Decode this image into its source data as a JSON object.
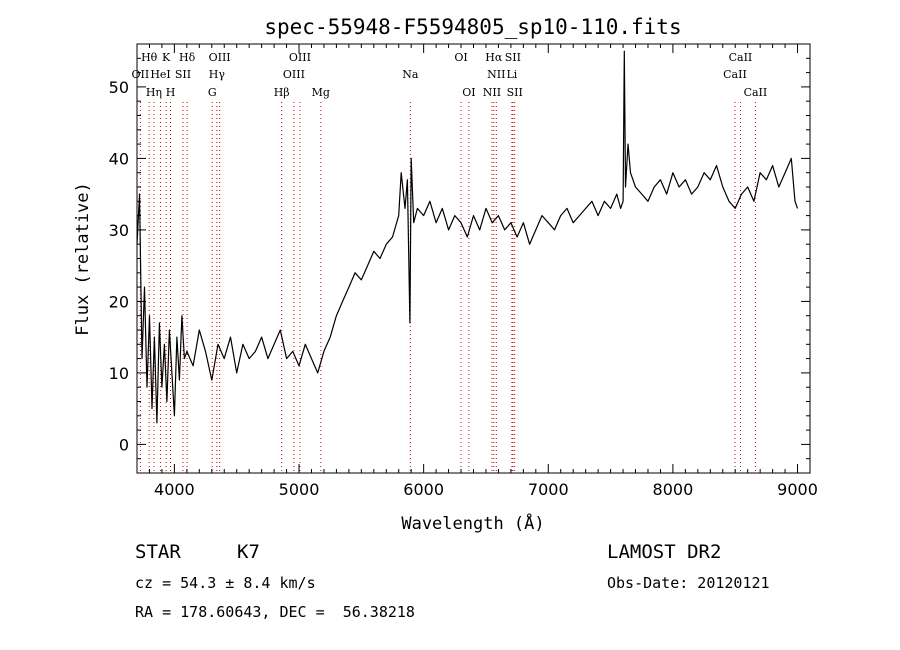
{
  "chart_data": {
    "type": "line",
    "title": "spec-55948-F5594805_sp10-110.fits",
    "xlabel": "Wavelength (Å)",
    "ylabel": "Flux (relative)",
    "xlim": [
      3700,
      9100
    ],
    "ylim": [
      -4,
      56
    ],
    "xticks": [
      4000,
      5000,
      6000,
      7000,
      8000,
      9000
    ],
    "yticks": [
      0,
      10,
      20,
      30,
      40,
      50
    ],
    "grid": false,
    "line_color": "#000000",
    "marker_color": "#cc0000",
    "series": [
      {
        "x": [
          3700,
          3720,
          3740,
          3760,
          3780,
          3800,
          3820,
          3840,
          3860,
          3880,
          3900,
          3920,
          3940,
          3960,
          3980,
          4000,
          4020,
          4040,
          4060,
          4080,
          4100,
          4150,
          4200,
          4250,
          4300,
          4350,
          4400,
          4450,
          4500,
          4550,
          4600,
          4650,
          4700,
          4750,
          4800,
          4850,
          4900,
          4950,
          5000,
          5050,
          5100,
          5150,
          5200,
          5250,
          5300,
          5350,
          5400,
          5450,
          5500,
          5550,
          5600,
          5650,
          5700,
          5750,
          5800,
          5820,
          5850,
          5870,
          5890,
          5900,
          5920,
          5950,
          6000,
          6050,
          6100,
          6150,
          6200,
          6250,
          6300,
          6350,
          6400,
          6450,
          6500,
          6550,
          6600,
          6650,
          6700,
          6750,
          6800,
          6850,
          6900,
          6950,
          7000,
          7050,
          7100,
          7150,
          7200,
          7250,
          7300,
          7350,
          7400,
          7450,
          7500,
          7550,
          7580,
          7600,
          7610,
          7620,
          7640,
          7660,
          7700,
          7750,
          7800,
          7850,
          7900,
          7950,
          8000,
          8050,
          8100,
          8150,
          8200,
          8250,
          8300,
          8350,
          8400,
          8450,
          8500,
          8550,
          8600,
          8650,
          8700,
          8750,
          8800,
          8850,
          8900,
          8950,
          8980,
          9000
        ],
        "y": [
          28,
          35,
          12,
          22,
          8,
          18,
          5,
          15,
          3,
          17,
          8,
          14,
          6,
          16,
          10,
          4,
          15,
          9,
          18,
          12,
          13,
          11,
          16,
          13,
          9,
          14,
          12,
          15,
          10,
          14,
          12,
          13,
          15,
          12,
          14,
          16,
          12,
          13,
          11,
          14,
          12,
          10,
          13,
          15,
          18,
          20,
          22,
          24,
          23,
          25,
          27,
          26,
          28,
          29,
          32,
          38,
          33,
          37,
          17,
          40,
          31,
          33,
          32,
          34,
          31,
          33,
          30,
          32,
          31,
          29,
          32,
          30,
          33,
          31,
          32,
          30,
          31,
          29,
          31,
          28,
          30,
          32,
          31,
          30,
          32,
          33,
          31,
          32,
          33,
          34,
          32,
          34,
          33,
          35,
          33,
          34,
          55,
          36,
          42,
          38,
          36,
          35,
          34,
          36,
          37,
          35,
          38,
          36,
          37,
          35,
          36,
          38,
          37,
          39,
          36,
          34,
          33,
          35,
          36,
          34,
          38,
          37,
          39,
          36,
          38,
          40,
          34,
          33
        ],
        "color": "#000000"
      }
    ],
    "line_markers": [
      {
        "label": "Hθ",
        "wavelength": 3798,
        "row": 1
      },
      {
        "label": "OII",
        "wavelength": 3727,
        "row": 2
      },
      {
        "label": "Hη",
        "wavelength": 3836,
        "row": 3
      },
      {
        "label": "K",
        "wavelength": 3934,
        "row": 1
      },
      {
        "label": "HeI",
        "wavelength": 3889,
        "row": 2
      },
      {
        "label": "H",
        "wavelength": 3969,
        "row": 3
      },
      {
        "label": "SII",
        "wavelength": 4069,
        "row": 2
      },
      {
        "label": "Hδ",
        "wavelength": 4102,
        "row": 1
      },
      {
        "label": "OIII",
        "wavelength": 4363,
        "row": 1
      },
      {
        "label": "Hγ",
        "wavelength": 4341,
        "row": 2
      },
      {
        "label": "G",
        "wavelength": 4304,
        "row": 3
      },
      {
        "label": "OIII",
        "wavelength": 5007,
        "row": 1
      },
      {
        "label": "OIII",
        "wavelength": 4959,
        "row": 2
      },
      {
        "label": "Hβ",
        "wavelength": 4861,
        "row": 3
      },
      {
        "label": "Mg",
        "wavelength": 5175,
        "row": 3
      },
      {
        "label": "Na",
        "wavelength": 5893,
        "row": 2
      },
      {
        "label": "OI",
        "wavelength": 6300,
        "row": 1
      },
      {
        "label": "OI",
        "wavelength": 6363,
        "row": 3
      },
      {
        "label": "Hα",
        "wavelength": 6563,
        "row": 1
      },
      {
        "label": "NII",
        "wavelength": 6583,
        "row": 2
      },
      {
        "label": "NII",
        "wavelength": 6548,
        "row": 3
      },
      {
        "label": "SII",
        "wavelength": 6716,
        "row": 1
      },
      {
        "label": "Li",
        "wavelength": 6708,
        "row": 2
      },
      {
        "label": "SII",
        "wavelength": 6731,
        "row": 3
      },
      {
        "label": "CaII",
        "wavelength": 8542,
        "row": 1
      },
      {
        "label": "CaII",
        "wavelength": 8498,
        "row": 2
      },
      {
        "label": "CaII",
        "wavelength": 8662,
        "row": 3
      }
    ]
  },
  "info": {
    "object_class": "STAR",
    "subclass": "K7",
    "survey": "LAMOST DR2",
    "redshift_line": "cz = 54.3 ± 8.4 km/s",
    "obs_date_line": "Obs-Date: 20120121",
    "coords_line": "RA = 178.60643, DEC =  56.38218"
  }
}
